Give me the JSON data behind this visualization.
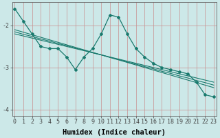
{
  "xlabel": "Humidex (Indice chaleur)",
  "ylabel": "",
  "bg_color": "#cce8e8",
  "line_color": "#1a7a6e",
  "grid_color": "#d8a0a0",
  "x_data": [
    0,
    1,
    2,
    3,
    4,
    5,
    6,
    7,
    8,
    9,
    10,
    11,
    12,
    13,
    14,
    15,
    16,
    17,
    18,
    19,
    20,
    21,
    22,
    23
  ],
  "y_main": [
    -1.6,
    -1.9,
    -2.2,
    -2.5,
    -2.55,
    -2.55,
    -2.75,
    -3.05,
    -2.75,
    -2.55,
    -2.2,
    -1.75,
    -1.8,
    -2.2,
    -2.55,
    -2.75,
    -2.9,
    -3.0,
    -3.05,
    -3.1,
    -3.15,
    -3.35,
    -3.65,
    -3.7
  ],
  "y_reg1": [
    -2.1,
    -2.16,
    -2.22,
    -2.28,
    -2.34,
    -2.4,
    -2.46,
    -2.52,
    -2.58,
    -2.64,
    -2.7,
    -2.76,
    -2.82,
    -2.88,
    -2.94,
    -3.0,
    -3.06,
    -3.12,
    -3.18,
    -3.24,
    -3.3,
    -3.36,
    -3.42,
    -3.48
  ],
  "y_reg2": [
    -2.15,
    -2.21,
    -2.26,
    -2.32,
    -2.37,
    -2.43,
    -2.48,
    -2.54,
    -2.59,
    -2.65,
    -2.7,
    -2.76,
    -2.81,
    -2.87,
    -2.92,
    -2.98,
    -3.03,
    -3.09,
    -3.14,
    -3.2,
    -3.25,
    -3.31,
    -3.36,
    -3.42
  ],
  "y_reg3": [
    -2.2,
    -2.25,
    -2.3,
    -2.35,
    -2.4,
    -2.45,
    -2.5,
    -2.55,
    -2.6,
    -2.65,
    -2.7,
    -2.75,
    -2.8,
    -2.85,
    -2.9,
    -2.95,
    -3.0,
    -3.05,
    -3.1,
    -3.15,
    -3.2,
    -3.25,
    -3.3,
    -3.35
  ],
  "xlim": [
    -0.3,
    23.3
  ],
  "ylim": [
    -4.15,
    -1.45
  ],
  "yticks": [
    -4,
    -3,
    -2
  ],
  "xticks": [
    0,
    1,
    2,
    3,
    4,
    5,
    6,
    7,
    8,
    9,
    10,
    11,
    12,
    13,
    14,
    15,
    16,
    17,
    18,
    19,
    20,
    21,
    22,
    23
  ],
  "tick_fontsize": 6,
  "label_fontsize": 7.5,
  "figsize": [
    3.2,
    2.0
  ],
  "dpi": 100
}
